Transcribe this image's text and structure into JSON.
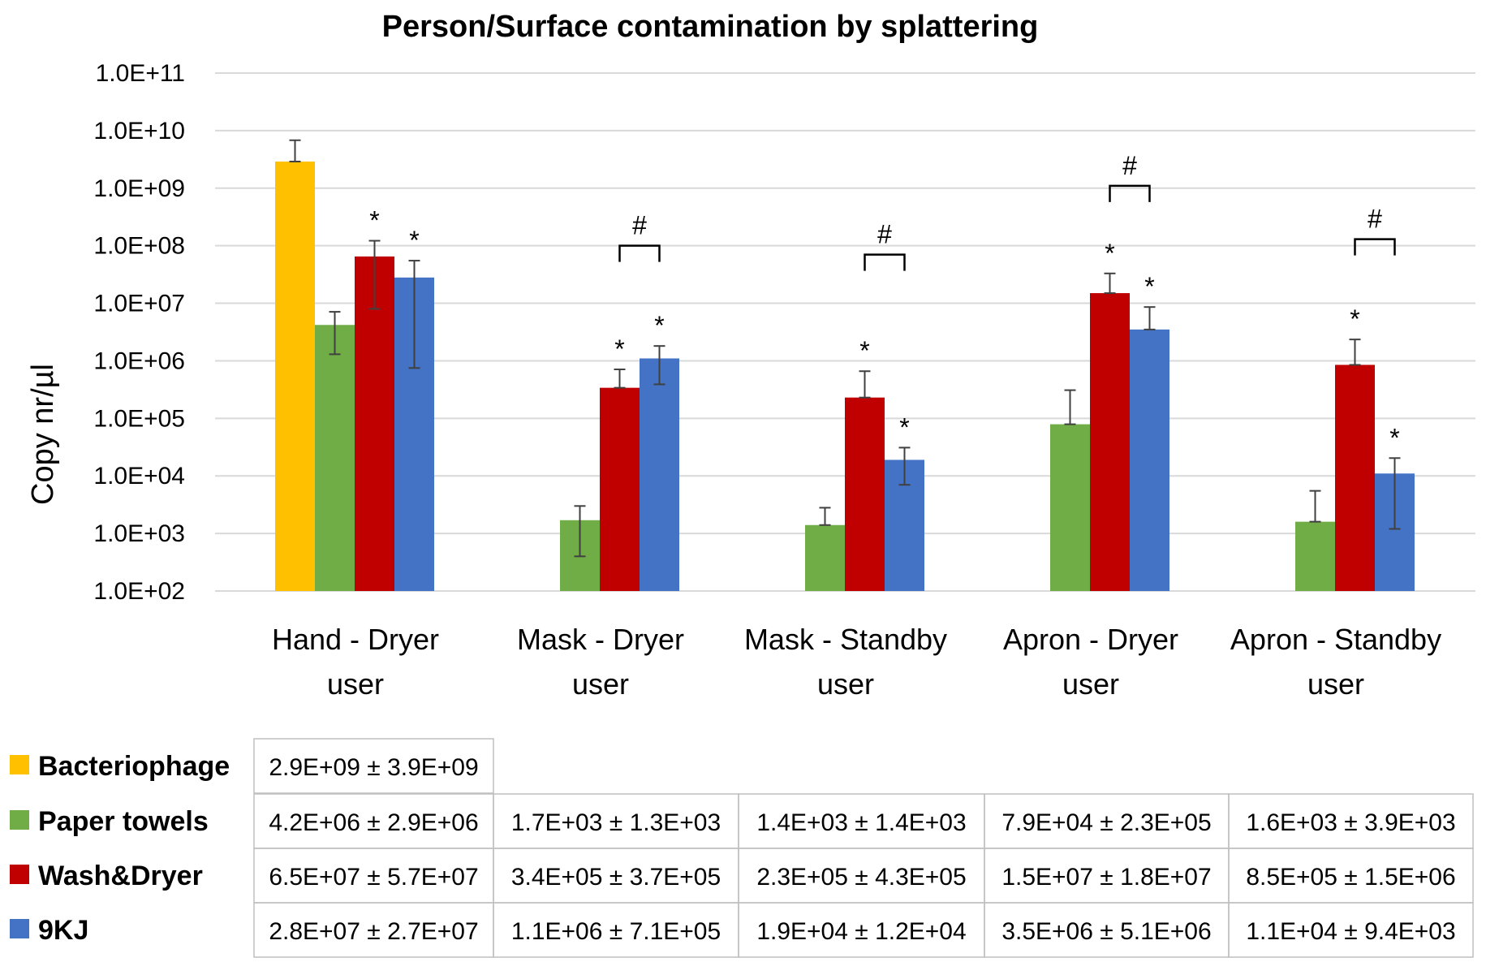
{
  "chart_data": {
    "type": "bar",
    "title": "Person/Surface contamination by splattering",
    "ylabel": "Copy nr/µl",
    "xlabel": "",
    "yscale": "log",
    "ylim": [
      100,
      100000000000
    ],
    "yticks": [
      {
        "value": 100,
        "label": "1.0E+02"
      },
      {
        "value": 1000,
        "label": "1.0E+03"
      },
      {
        "value": 10000,
        "label": "1.0E+04"
      },
      {
        "value": 100000,
        "label": "1.0E+05"
      },
      {
        "value": 1000000,
        "label": "1.0E+06"
      },
      {
        "value": 10000000,
        "label": "1.0E+07"
      },
      {
        "value": 100000000,
        "label": "1.0E+08"
      },
      {
        "value": 1000000000,
        "label": "1.0E+09"
      },
      {
        "value": 10000000000,
        "label": "1.0E+10"
      },
      {
        "value": 100000000000,
        "label": "1.0E+11"
      }
    ],
    "grid": true,
    "categories": [
      {
        "line1": "Hand - Dryer",
        "line2": "user"
      },
      {
        "line1": "Mask - Dryer",
        "line2": "user"
      },
      {
        "line1": "Mask - Standby",
        "line2": "user"
      },
      {
        "line1": "Apron - Dryer",
        "line2": "user"
      },
      {
        "line1": "Apron - Standby",
        "line2": "user"
      }
    ],
    "series": [
      {
        "name": "Bacteriophage",
        "color": "#FFC000",
        "values": [
          2900000000,
          null,
          null,
          null,
          null
        ],
        "err_low": [
          2900000000,
          null,
          null,
          null,
          null
        ],
        "err_high": [
          6800000000,
          null,
          null,
          null,
          null
        ],
        "star": [
          false,
          false,
          false,
          false,
          false
        ],
        "table": [
          "2.9E+09 ± 3.9E+09",
          "",
          "",
          "",
          ""
        ]
      },
      {
        "name": "Paper towels",
        "color": "#70AD47",
        "values": [
          4200000,
          1700,
          1400,
          79000,
          1600
        ],
        "err_low": [
          1300000,
          400,
          1400,
          79000,
          1600
        ],
        "err_high": [
          7100000,
          3000,
          2800,
          309000,
          5500
        ],
        "star": [
          false,
          false,
          false,
          false,
          false
        ],
        "table": [
          "4.2E+06 ± 2.9E+06",
          "1.7E+03 ± 1.3E+03",
          "1.4E+03 ± 1.4E+03",
          "7.9E+04 ± 2.3E+05",
          "1.6E+03 ± 3.9E+03"
        ]
      },
      {
        "name": "Wash&Dryer",
        "color": "#C00000",
        "values": [
          65000000,
          340000,
          230000,
          15000000,
          850000
        ],
        "err_low": [
          8000000,
          340000,
          230000,
          15000000,
          850000
        ],
        "err_high": [
          122000000,
          710000,
          660000,
          33000000,
          2350000
        ],
        "star": [
          true,
          true,
          true,
          true,
          true
        ],
        "table": [
          "6.5E+07 ± 5.7E+07",
          "3.4E+05 ± 3.7E+05",
          "2.3E+05 ± 4.3E+05",
          "1.5E+07 ± 1.8E+07",
          "8.5E+05 ± 1.5E+06"
        ]
      },
      {
        "name": "9KJ",
        "color": "#4472C4",
        "values": [
          28000000,
          1100000,
          19000,
          3500000,
          11000
        ],
        "err_low": [
          750000,
          390000,
          7000,
          3500000,
          1200
        ],
        "err_high": [
          55000000,
          1810000,
          31000,
          8600000,
          20400
        ],
        "star": [
          true,
          true,
          true,
          true,
          true
        ],
        "table": [
          "2.8E+07 ± 2.7E+07",
          "1.1E+06 ± 7.1E+05",
          "1.9E+04 ± 1.2E+04",
          "3.5E+06 ± 5.1E+06",
          "1.1E+04 ± 9.4E+03"
        ]
      }
    ],
    "star_label": "*",
    "brackets": [
      {
        "category": 1,
        "label": "#",
        "level": 100000000
      },
      {
        "category": 2,
        "label": "#",
        "level": 70000000
      },
      {
        "category": 3,
        "label": "#",
        "level": 1100000000
      },
      {
        "category": 4,
        "label": "#",
        "level": 130000000
      }
    ]
  }
}
